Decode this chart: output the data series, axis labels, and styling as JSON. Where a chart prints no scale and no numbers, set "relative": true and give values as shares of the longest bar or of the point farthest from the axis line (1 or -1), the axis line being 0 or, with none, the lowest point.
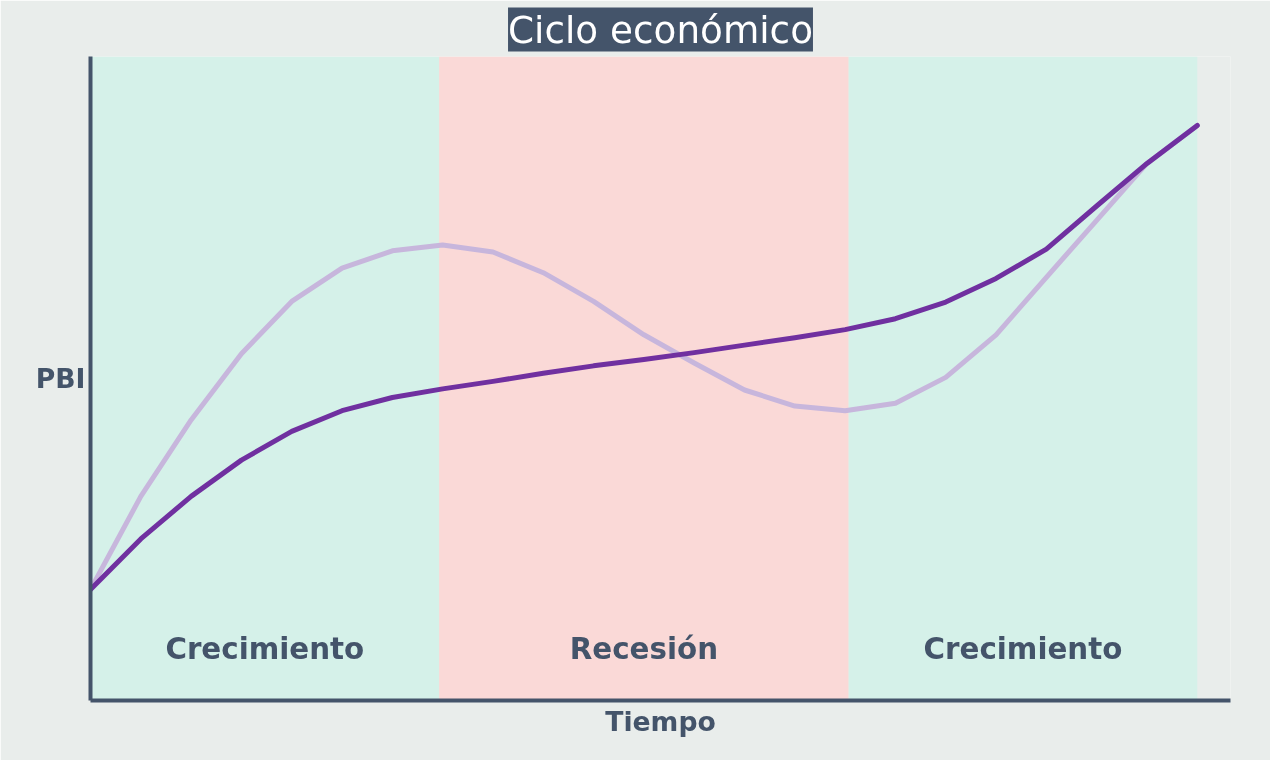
{
  "chart_data": {
    "type": "line",
    "title": "Ciclo económico",
    "xlabel": "Tiempo",
    "ylabel": "PBI",
    "relative": true,
    "categories": [
      null,
      null,
      null,
      null,
      null,
      null,
      null,
      null,
      null,
      null,
      null,
      null,
      null,
      null,
      null,
      null,
      null,
      null,
      null,
      null,
      null,
      null,
      null
    ],
    "series": [
      {
        "color": "#c7b6dc",
        "values": [
          0.193,
          0.355,
          0.488,
          0.603,
          0.694,
          0.752,
          0.782,
          0.792,
          0.78,
          0.744,
          0.694,
          0.636,
          0.587,
          0.54,
          0.512,
          0.504,
          0.517,
          0.562,
          0.636,
          0.736,
          0.835,
          0.934,
          1.0
        ]
      },
      {
        "color": "#7030a0",
        "values": [
          0.193,
          0.281,
          0.355,
          0.418,
          0.468,
          0.504,
          0.527,
          0.542,
          0.555,
          0.569,
          0.582,
          0.593,
          0.605,
          0.618,
          0.631,
          0.645,
          0.664,
          0.693,
          0.734,
          0.785,
          0.86,
          0.934,
          1.0
        ]
      }
    ],
    "annotations": [
      "Crecimiento",
      "Recesión",
      "Crecimiento"
    ],
    "line_style": "solid",
    "marker": "none"
  }
}
